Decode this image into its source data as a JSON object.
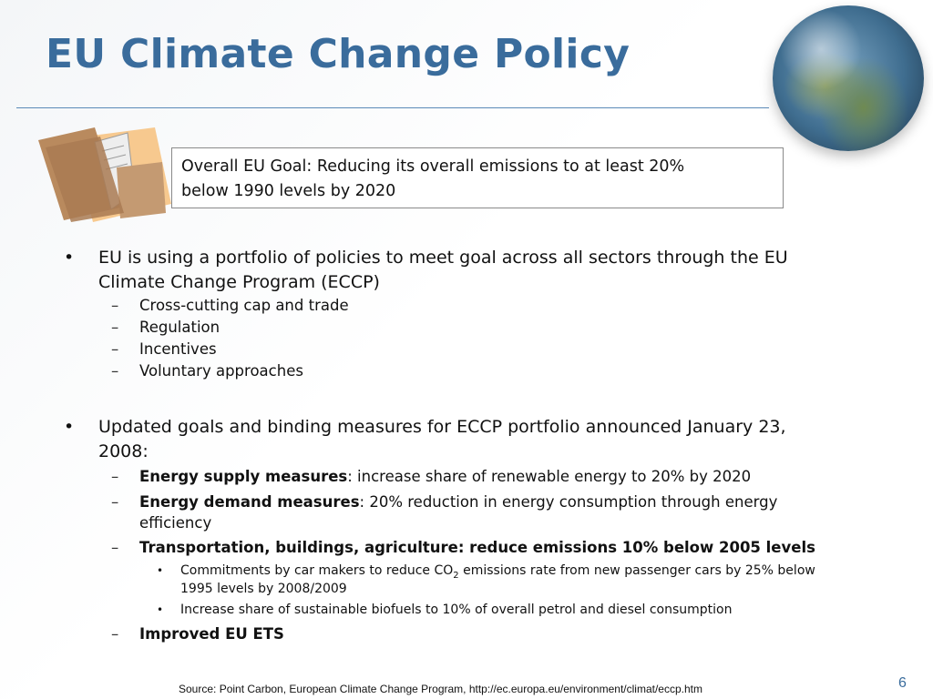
{
  "slide": {
    "title": "EU Climate Change Policy",
    "goal_box": {
      "line1": "Overall EU Goal: Reducing its overall emissions to at least 20%",
      "line2": "below 1990 levels by 2020"
    },
    "bullets": [
      {
        "line1": "EU is using a portfolio of policies to meet goal across all sectors through the EU",
        "line2": "Climate Change Program (ECCP)",
        "subs": [
          "Cross-cutting cap and trade",
          "Regulation",
          "Incentives",
          "Voluntary approaches"
        ]
      },
      {
        "line1": "Updated goals and binding measures for ECCP portfolio announced January 23,",
        "line2": "2008:",
        "subs": [
          {
            "bold": "Energy supply measures",
            "rest": ": increase share of renewable energy to 20% by 2020"
          },
          {
            "bold": "Energy demand measures",
            "rest": ": 20% reduction in energy consumption through energy",
            "rest2": "efficiency"
          },
          {
            "bold": "Transportation, buildings, agriculture: reduce emissions 10% below 2005 levels",
            "subs": [
              {
                "pre": "Commitments by car makers to reduce CO",
                "sub": "2",
                "post": " emissions rate from new passenger cars by 25% below",
                "line2": "1995 levels by 2008/2009"
              },
              {
                "text": "Increase share of sustainable biofuels to 10% of overall petrol and diesel consumption"
              }
            ]
          },
          {
            "bold": "Improved EU ETS"
          }
        ]
      }
    ],
    "bullet_glyph": "•",
    "dash_glyph": "–",
    "source": "Source:  Point Carbon, European Climate Change Program,  http://ec.europa.eu/environment/climat/eccp.htm",
    "page_number": "6",
    "colors": {
      "title": "#3a6c9c",
      "rule": "#5b8ab8"
    }
  }
}
